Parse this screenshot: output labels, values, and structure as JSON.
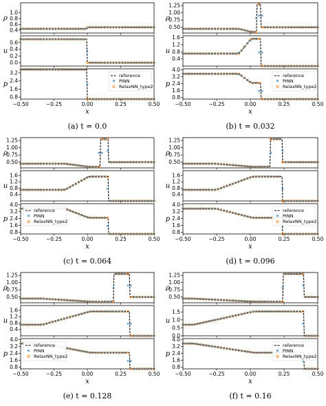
{
  "figure": {
    "legend_entries": [
      "reference",
      "PINN",
      "RelaxNN_type2"
    ],
    "colors": {
      "reference": "#000000",
      "pinn": "#1f77b4",
      "relaxnn": "#ff7f0e"
    }
  },
  "chart_data": [
    {
      "type": "line",
      "caption": "(a) t = 0.0",
      "t": 0.0,
      "xlabel": "x",
      "xlim": [
        -0.5,
        0.5
      ],
      "xticks": [
        "−0.50",
        "−0.25",
        "0.00",
        "0.25",
        "0.50"
      ],
      "panels": [
        {
          "ylabel": "ρ",
          "ylim": [
            0.3,
            1.35
          ],
          "yticks": [
            "0.4",
            "0.6",
            "0.8",
            "1.0"
          ],
          "yticks_v": [
            0.4,
            0.6,
            0.8,
            1.0
          ]
        },
        {
          "ylabel": "u",
          "ylim": [
            -0.1,
            0.8
          ],
          "yticks": [
            "0.0",
            "0.2",
            "0.4",
            "0.6"
          ],
          "yticks_v": [
            0.0,
            0.2,
            0.4,
            0.6
          ]
        },
        {
          "ylabel": "p",
          "ylim": [
            0.6,
            3.6
          ],
          "yticks": [
            "0.8",
            "1.6",
            "2.4",
            "3.2"
          ],
          "yticks_v": [
            0.8,
            1.6,
            2.4,
            3.2
          ]
        }
      ]
    },
    {
      "type": "line",
      "caption": "(b) t = 0.032",
      "t": 0.032,
      "xlabel": "x",
      "xlim": [
        -0.5,
        0.5
      ],
      "xticks": [
        "−0.50",
        "−0.25",
        "0.00",
        "0.25",
        "0.50"
      ],
      "panels": [
        {
          "ylabel": "ρ",
          "ylim": [
            0.3,
            1.35
          ],
          "yticks": [
            "0.50",
            "0.75",
            "1.00",
            "1.25"
          ],
          "yticks_v": [
            0.5,
            0.75,
            1.0,
            1.25
          ]
        },
        {
          "ylabel": "u",
          "ylim": [
            0.0,
            1.7
          ],
          "yticks": [
            "0.4",
            "0.8",
            "1.2",
            "1.6"
          ],
          "yticks_v": [
            0.4,
            0.8,
            1.2,
            1.6
          ]
        },
        {
          "ylabel": "p",
          "ylim": [
            0.6,
            4.1
          ],
          "yticks": [
            "0.8",
            "1.6",
            "2.4",
            "3.2",
            "4.0"
          ],
          "yticks_v": [
            0.8,
            1.6,
            2.4,
            3.2,
            4.0
          ]
        }
      ]
    },
    {
      "type": "line",
      "caption": "(c) t = 0.064",
      "t": 0.064,
      "xlabel": "x",
      "xlim": [
        -0.5,
        0.5
      ],
      "xticks": [
        "−0.50",
        "−0.25",
        "0.00",
        "0.25",
        "0.50"
      ],
      "panels": [
        {
          "ylabel": "ρ",
          "ylim": [
            0.3,
            1.35
          ],
          "yticks": [
            "0.50",
            "0.75",
            "1.00",
            "1.25"
          ],
          "yticks_v": [
            0.5,
            0.75,
            1.0,
            1.25
          ]
        },
        {
          "ylabel": "u",
          "ylim": [
            0.0,
            1.9
          ],
          "yticks": [
            "0.4",
            "0.8",
            "1.2",
            "1.6"
          ],
          "yticks_v": [
            0.4,
            0.8,
            1.2,
            1.6
          ]
        },
        {
          "ylabel": "p",
          "ylim": [
            0.6,
            4.1
          ],
          "yticks": [
            "0.8",
            "1.6",
            "2.4",
            "3.2",
            "4.0"
          ],
          "yticks_v": [
            0.8,
            1.6,
            2.4,
            3.2,
            4.0
          ]
        }
      ]
    },
    {
      "type": "line",
      "caption": "(d) t = 0.096",
      "t": 0.096,
      "xlabel": "x",
      "xlim": [
        -0.5,
        0.5
      ],
      "xticks": [
        "−0.50",
        "−0.25",
        "0.00",
        "0.25",
        "0.50"
      ],
      "panels": [
        {
          "ylabel": "ρ",
          "ylim": [
            0.3,
            1.35
          ],
          "yticks": [
            "0.50",
            "0.75",
            "1.00",
            "1.25"
          ],
          "yticks_v": [
            0.5,
            0.75,
            1.0,
            1.25
          ]
        },
        {
          "ylabel": "u",
          "ylim": [
            0.0,
            1.9
          ],
          "yticks": [
            "0.4",
            "0.8",
            "1.2",
            "1.6"
          ],
          "yticks_v": [
            0.4,
            0.8,
            1.2,
            1.6
          ]
        },
        {
          "ylabel": "p",
          "ylim": [
            0.6,
            4.1
          ],
          "yticks": [
            "0.8",
            "1.6",
            "2.4",
            "3.2",
            "4.0"
          ],
          "yticks_v": [
            0.8,
            1.6,
            2.4,
            3.2,
            4.0
          ]
        }
      ]
    },
    {
      "type": "line",
      "caption": "(e) t = 0.128",
      "t": 0.128,
      "xlabel": "x",
      "xlim": [
        -0.5,
        0.5
      ],
      "xticks": [
        "−0.50",
        "−0.25",
        "0.00",
        "0.25",
        "0.50"
      ],
      "panels": [
        {
          "ylabel": "ρ",
          "ylim": [
            0.3,
            1.35
          ],
          "yticks": [
            "0.50",
            "0.75",
            "1.00",
            "1.25"
          ],
          "yticks_v": [
            0.5,
            0.75,
            1.0,
            1.25
          ]
        },
        {
          "ylabel": "u",
          "ylim": [
            0.0,
            1.9
          ],
          "yticks": [
            "0.4",
            "0.8",
            "1.2",
            "1.6"
          ],
          "yticks_v": [
            0.4,
            0.8,
            1.2,
            1.6
          ]
        },
        {
          "ylabel": "p",
          "ylim": [
            0.6,
            4.1
          ],
          "yticks": [
            "0.8",
            "1.6",
            "2.4",
            "3.2",
            "4.0"
          ],
          "yticks_v": [
            0.8,
            1.6,
            2.4,
            3.2,
            4.0
          ]
        }
      ]
    },
    {
      "type": "line",
      "caption": "(f) t = 0.16",
      "t": 0.16,
      "xlabel": "x",
      "xlim": [
        -0.5,
        0.5
      ],
      "xticks": [
        "−0.50",
        "−0.25",
        "0.00",
        "0.25",
        "0.50"
      ],
      "panels": [
        {
          "ylabel": "ρ",
          "ylim": [
            0.3,
            1.35
          ],
          "yticks": [
            "0.50",
            "0.75",
            "1.00",
            "1.25"
          ],
          "yticks_v": [
            0.5,
            0.75,
            1.0,
            1.25
          ]
        },
        {
          "ylabel": "u",
          "ylim": [
            0.0,
            1.9
          ],
          "yticks": [
            "0.0",
            "0.5",
            "1.0",
            "1.5"
          ],
          "yticks_v": [
            0.0,
            0.5,
            1.0,
            1.5
          ]
        },
        {
          "ylabel": "p",
          "ylim": [
            0.6,
            4.1
          ],
          "yticks": [
            "0.8",
            "1.6",
            "2.4",
            "3.2",
            "4.0"
          ],
          "yticks_v": [
            0.8,
            1.6,
            2.4,
            3.2,
            4.0
          ]
        }
      ]
    }
  ]
}
